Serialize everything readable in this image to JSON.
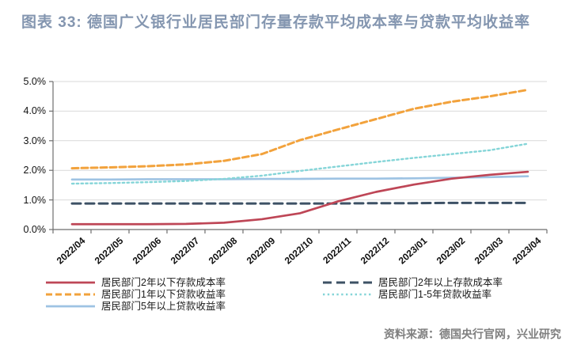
{
  "title": "图表 33: 德国广义银行业居民部门存量存款平均成本率与贷款平均收益率",
  "source": "资料来源：德国央行官网，兴业研究",
  "colors": {
    "title_text": "#8496B0",
    "source_text": "#7F7F7F",
    "gridline": "#D9D9D9",
    "axis": "#6E6E6E",
    "legend_text": "#1A1A1A"
  },
  "chart_data": {
    "type": "line",
    "title": "图表 33: 德国广义银行业居民部门存量存款平均成本率与贷款平均收益率",
    "xlabel": "",
    "ylabel": "",
    "ylim": [
      0,
      5
    ],
    "ytick_labels": [
      "0.0%",
      "1.0%",
      "2.0%",
      "3.0%",
      "4.0%",
      "5.0%"
    ],
    "grid": "horizontal",
    "legend_position": "bottom",
    "categories": [
      "2022/04",
      "2022/05",
      "2022/06",
      "2022/07",
      "2022/08",
      "2022/09",
      "2022/10",
      "2022/11",
      "2022/12",
      "2023/01",
      "2023/02",
      "2023/03",
      "2023/04"
    ],
    "series": [
      {
        "key": "deposit-under-2y",
        "name": "居民部门2年以下存款成本率",
        "color": "#BE4656",
        "line_style": "solid",
        "values": [
          0.18,
          0.18,
          0.18,
          0.19,
          0.23,
          0.35,
          0.55,
          0.95,
          1.27,
          1.52,
          1.72,
          1.85,
          1.95
        ]
      },
      {
        "key": "loan-under-1y",
        "name": "居民部门1年以下贷款收益率",
        "color": "#F2A23C",
        "line_style": "short-dash",
        "values": [
          2.07,
          2.1,
          2.14,
          2.2,
          2.32,
          2.55,
          3.02,
          3.38,
          3.73,
          4.08,
          4.32,
          4.5,
          4.72
        ]
      },
      {
        "key": "loan-over-5y",
        "name": "居民部门5年以上贷款收益率",
        "color": "#9EC3E3",
        "line_style": "solid",
        "values": [
          1.69,
          1.69,
          1.7,
          1.7,
          1.7,
          1.71,
          1.71,
          1.72,
          1.72,
          1.73,
          1.75,
          1.77,
          1.8
        ]
      },
      {
        "key": "deposit-over-2y",
        "name": "居民部门2年以上存款成本率",
        "color": "#3D5165",
        "line_style": "long-dash",
        "values": [
          0.88,
          0.88,
          0.88,
          0.88,
          0.88,
          0.88,
          0.88,
          0.88,
          0.89,
          0.89,
          0.9,
          0.9,
          0.9
        ]
      },
      {
        "key": "loan-1-5y",
        "name": "居民部门1-5年贷款收益率",
        "color": "#85D5D8",
        "line_style": "dotted",
        "values": [
          1.55,
          1.57,
          1.6,
          1.64,
          1.71,
          1.82,
          1.98,
          2.13,
          2.28,
          2.42,
          2.55,
          2.68,
          2.9
        ]
      }
    ]
  }
}
